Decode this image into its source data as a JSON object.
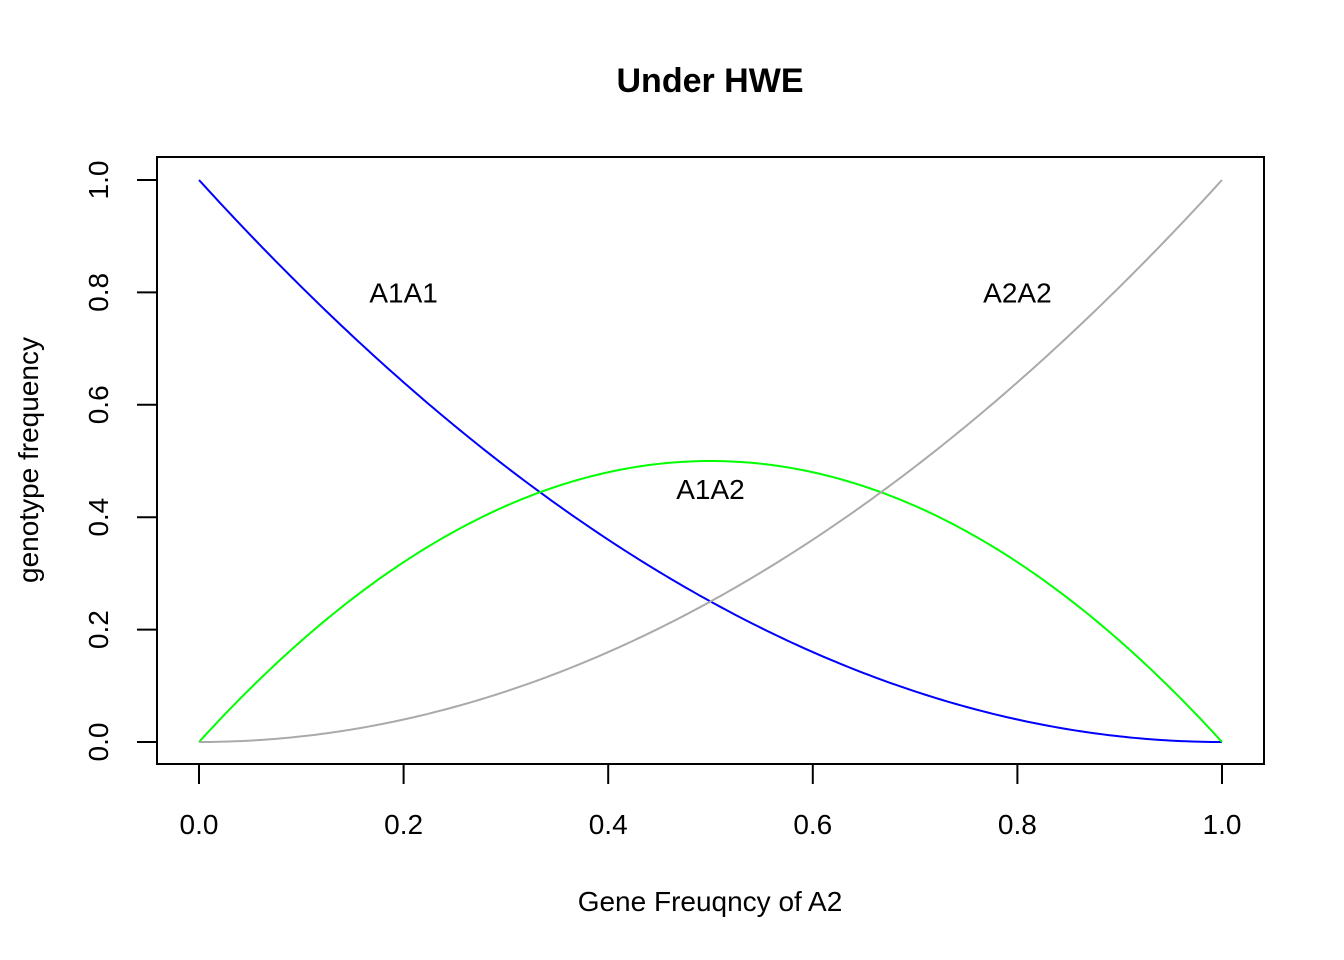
{
  "chart_data": {
    "type": "line",
    "title": "Under HWE",
    "xlabel": "Gene Freuqncy of A2",
    "ylabel": "genotype frequency",
    "xlim": [
      0,
      1
    ],
    "ylim": [
      0,
      1
    ],
    "xticks": [
      0.0,
      0.2,
      0.4,
      0.6,
      0.8,
      1.0
    ],
    "yticks": [
      0.0,
      0.2,
      0.4,
      0.6,
      0.8,
      1.0
    ],
    "xtick_labels": [
      "0.0",
      "0.2",
      "0.4",
      "0.6",
      "0.8",
      "1.0"
    ],
    "ytick_labels": [
      "0.0",
      "0.2",
      "0.4",
      "0.6",
      "0.8",
      "1.0"
    ],
    "x": [
      0.0,
      0.05,
      0.1,
      0.15,
      0.2,
      0.25,
      0.3,
      0.35,
      0.4,
      0.45,
      0.5,
      0.55,
      0.6,
      0.65,
      0.7,
      0.75,
      0.8,
      0.85,
      0.9,
      0.95,
      1.0
    ],
    "series": [
      {
        "color": "#0000ff",
        "values": [
          1.0,
          0.9025,
          0.81,
          0.7225,
          0.64,
          0.5625,
          0.49,
          0.4225,
          0.36,
          0.3025,
          0.25,
          0.2025,
          0.16,
          0.1225,
          0.09,
          0.0625,
          0.04,
          0.0225,
          0.01,
          0.0025,
          0.0
        ]
      },
      {
        "color": "#00ff00",
        "values": [
          0.0,
          0.095,
          0.18,
          0.255,
          0.32,
          0.375,
          0.42,
          0.455,
          0.48,
          0.495,
          0.5,
          0.495,
          0.48,
          0.455,
          0.42,
          0.375,
          0.32,
          0.255,
          0.18,
          0.095,
          0.0
        ]
      },
      {
        "color": "#aaaaaa",
        "values": [
          0.0,
          0.0025,
          0.01,
          0.0225,
          0.04,
          0.0625,
          0.09,
          0.1225,
          0.16,
          0.2025,
          0.25,
          0.3025,
          0.36,
          0.4225,
          0.49,
          0.5625,
          0.64,
          0.7225,
          0.81,
          0.9025,
          1.0
        ]
      }
    ],
    "annotations": [
      {
        "text": "A1A1",
        "x": 0.2,
        "y": 0.8
      },
      {
        "text": "A1A2",
        "x": 0.5,
        "y": 0.45
      },
      {
        "text": "A2A2",
        "x": 0.8,
        "y": 0.8
      }
    ],
    "grid": false,
    "legend": "none"
  }
}
